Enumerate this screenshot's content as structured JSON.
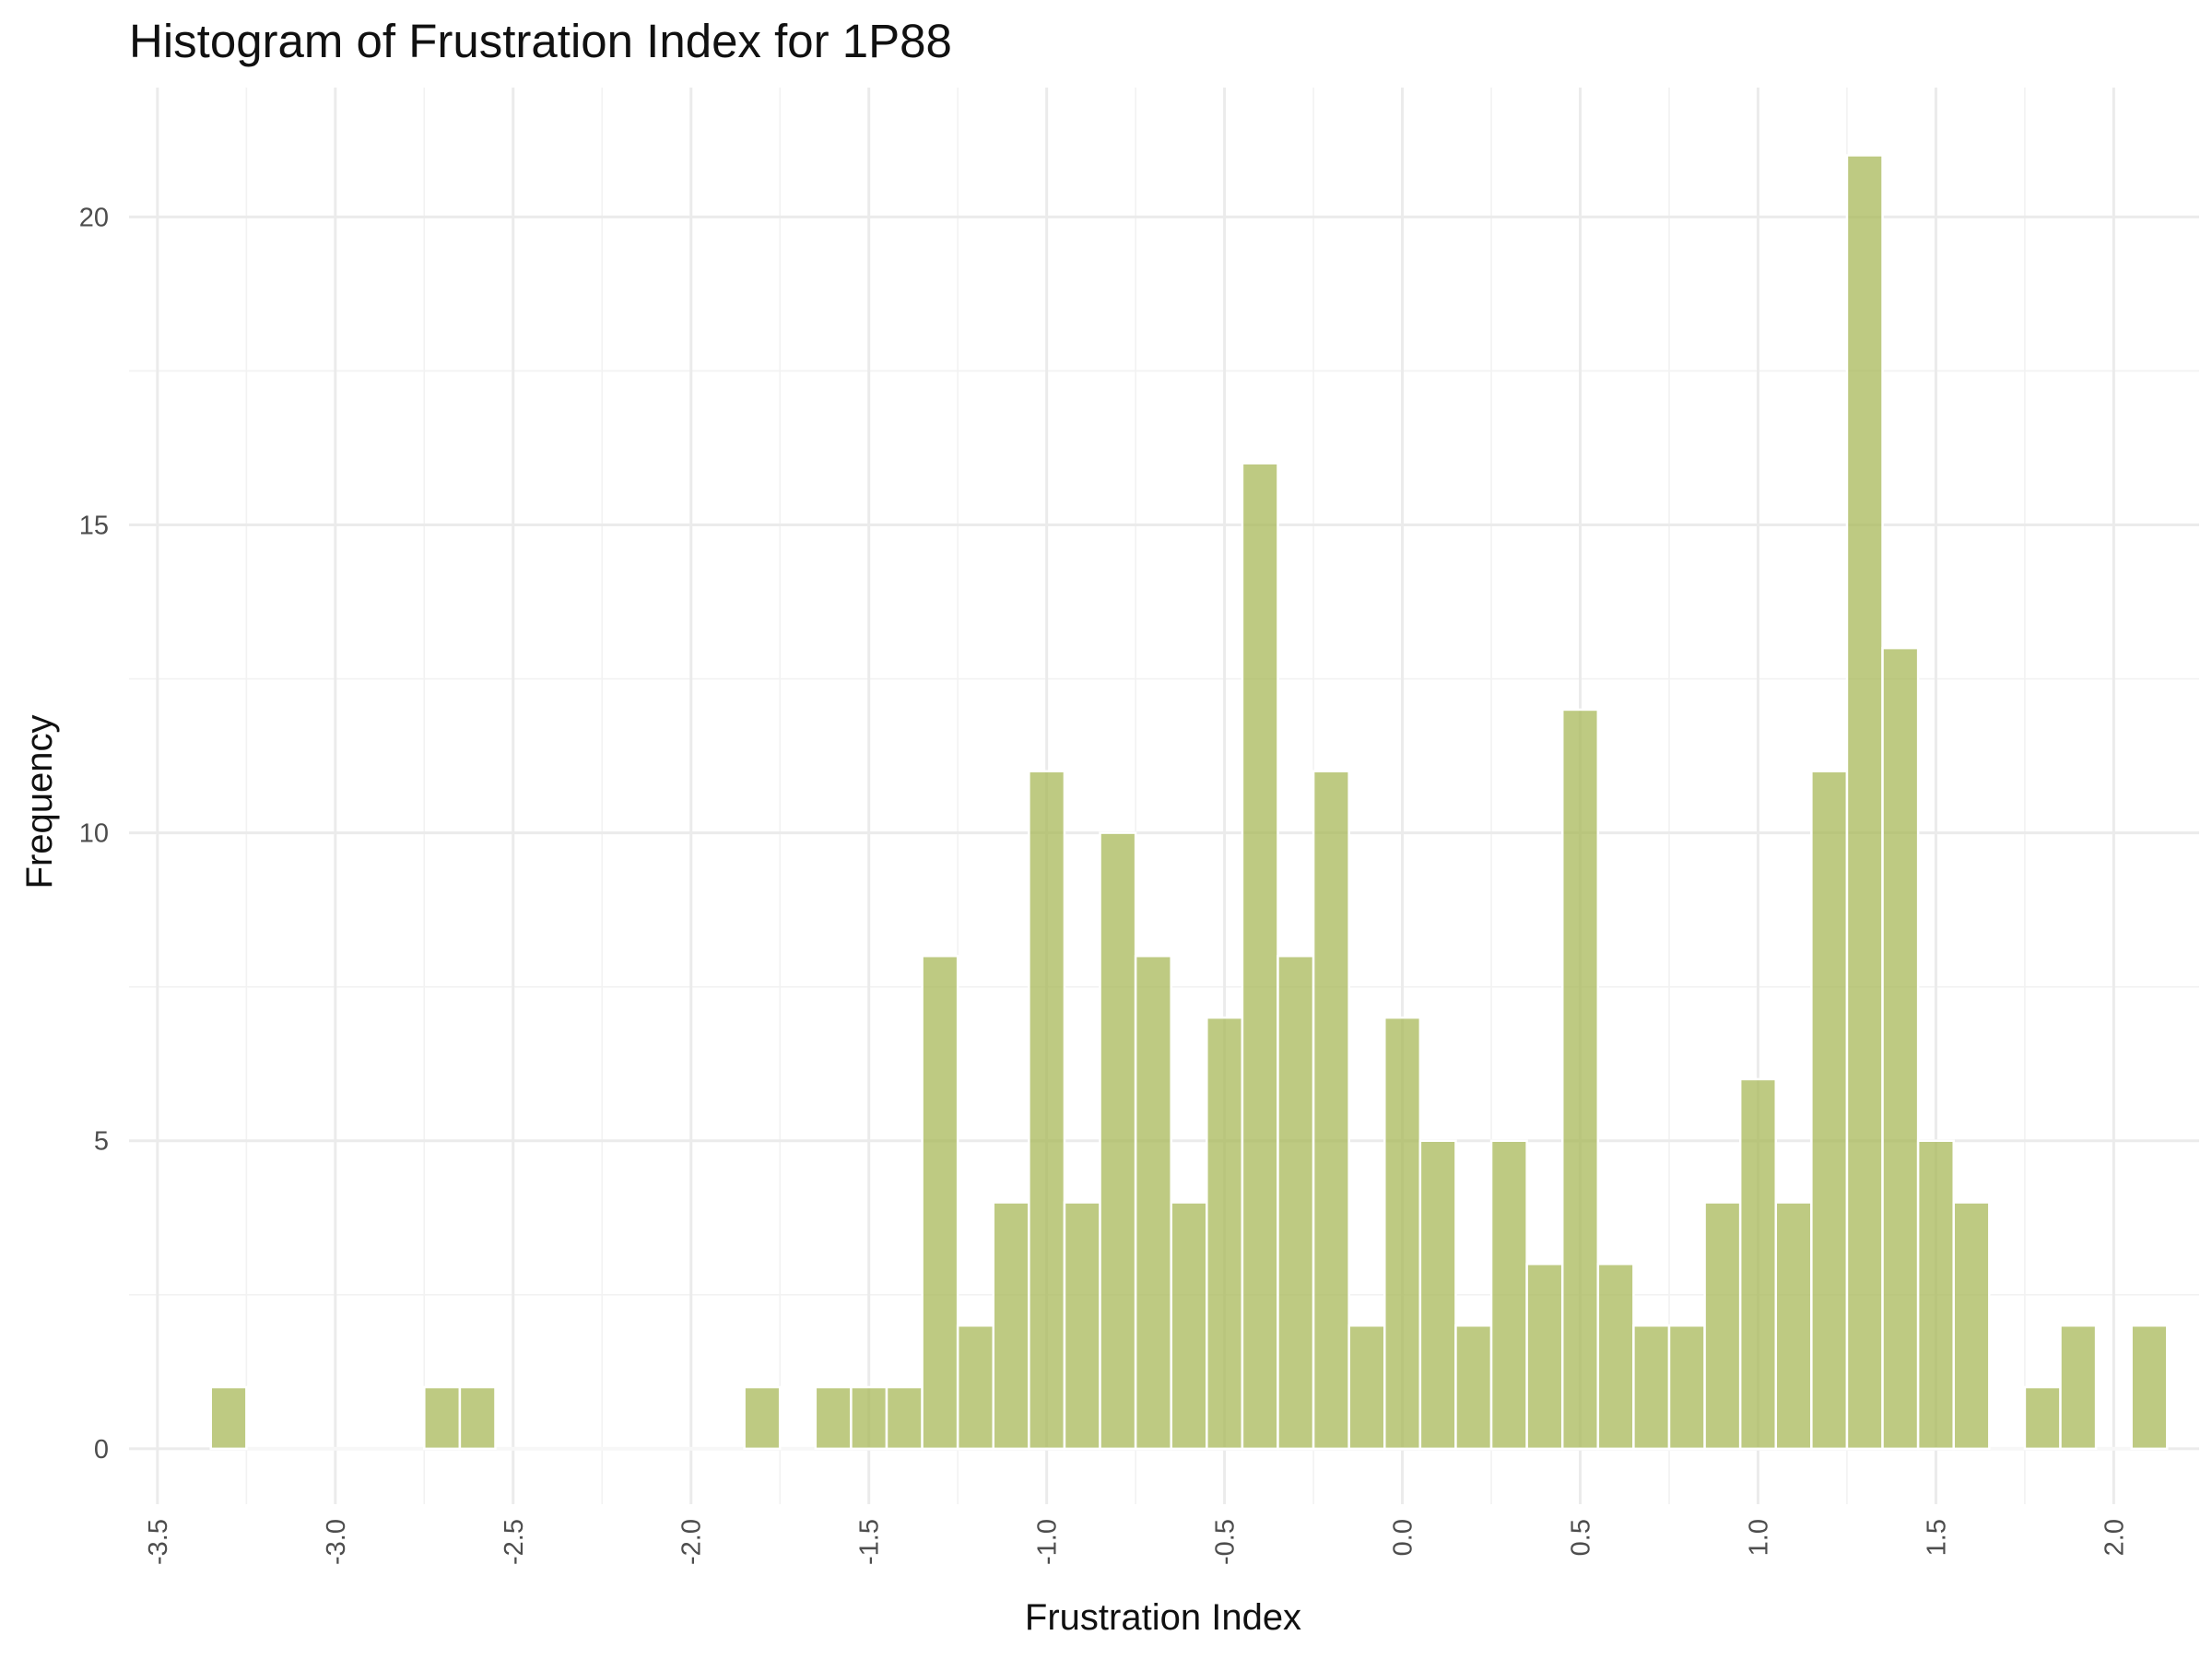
{
  "chart_data": {
    "type": "bar",
    "title": "Histogram of Frustration Index for 1P88",
    "xlabel": "Frustration Index",
    "ylabel": "Frequency",
    "xlim": [
      -3.5,
      2.25
    ],
    "ylim": [
      0,
      21
    ],
    "grid": true,
    "legend": "none",
    "bin_width": 0.1,
    "bar_color": "#a5b552",
    "x_ticks": [
      "-3.5",
      "-3.0",
      "-2.5",
      "-2.0",
      "-1.5",
      "-1.0",
      "-0.5",
      "0.0",
      "0.5",
      "1.0",
      "1.5",
      "2.0"
    ],
    "y_ticks": [
      "0",
      "5",
      "10",
      "15",
      "20"
    ],
    "bins": [
      {
        "x": -3.3,
        "count": 1
      },
      {
        "x": -2.7,
        "count": 1
      },
      {
        "x": -2.6,
        "count": 1
      },
      {
        "x": -1.8,
        "count": 1
      },
      {
        "x": -1.6,
        "count": 1
      },
      {
        "x": -1.5,
        "count": 1
      },
      {
        "x": -1.4,
        "count": 1
      },
      {
        "x": -1.3,
        "count": 8
      },
      {
        "x": -1.2,
        "count": 2
      },
      {
        "x": -1.1,
        "count": 4
      },
      {
        "x": -1.0,
        "count": 11
      },
      {
        "x": -0.9,
        "count": 4
      },
      {
        "x": -0.8,
        "count": 10
      },
      {
        "x": -0.7,
        "count": 8
      },
      {
        "x": -0.6,
        "count": 4
      },
      {
        "x": -0.5,
        "count": 7
      },
      {
        "x": -0.4,
        "count": 16
      },
      {
        "x": -0.3,
        "count": 8
      },
      {
        "x": -0.2,
        "count": 11
      },
      {
        "x": -0.1,
        "count": 2
      },
      {
        "x": 0.0,
        "count": 7
      },
      {
        "x": 0.1,
        "count": 5
      },
      {
        "x": 0.2,
        "count": 2
      },
      {
        "x": 0.3,
        "count": 5
      },
      {
        "x": 0.4,
        "count": 3
      },
      {
        "x": 0.5,
        "count": 12
      },
      {
        "x": 0.6,
        "count": 3
      },
      {
        "x": 0.7,
        "count": 2
      },
      {
        "x": 0.8,
        "count": 2
      },
      {
        "x": 0.9,
        "count": 4
      },
      {
        "x": 1.0,
        "count": 6
      },
      {
        "x": 1.1,
        "count": 4
      },
      {
        "x": 1.2,
        "count": 11
      },
      {
        "x": 1.3,
        "count": 21
      },
      {
        "x": 1.4,
        "count": 13
      },
      {
        "x": 1.5,
        "count": 5
      },
      {
        "x": 1.6,
        "count": 4
      },
      {
        "x": 1.8,
        "count": 1
      },
      {
        "x": 1.9,
        "count": 2
      },
      {
        "x": 2.1,
        "count": 2
      }
    ]
  }
}
